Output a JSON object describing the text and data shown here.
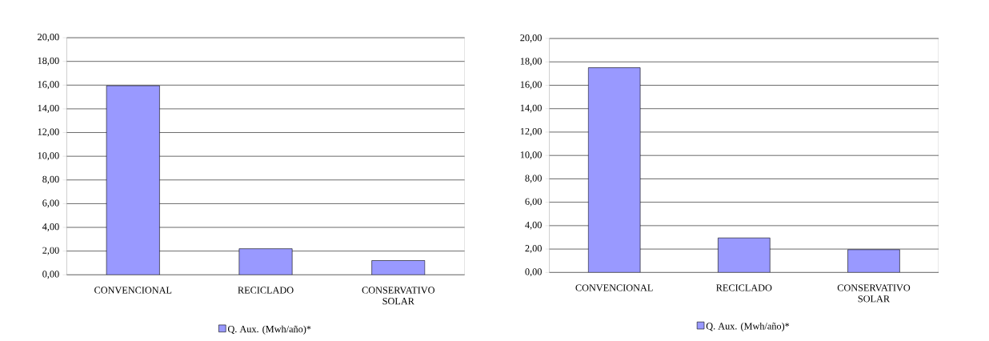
{
  "chart_data": [
    {
      "type": "bar",
      "categories": [
        "CONVENCIONAL",
        "RECICLADO",
        "CONSERVATIVO SOLAR"
      ],
      "series": [
        {
          "name": "Q. Aux.  (Mwh/año)*",
          "color": "#9999ff",
          "values": [
            15.95,
            2.2,
            1.2
          ]
        }
      ],
      "ylim": [
        0,
        20
      ],
      "yticks": [
        {
          "value": 0,
          "label": "0,00"
        },
        {
          "value": 2,
          "label": "2,00"
        },
        {
          "value": 4,
          "label": "4,00"
        },
        {
          "value": 6,
          "label": "6,00"
        },
        {
          "value": 8,
          "label": "8,00"
        },
        {
          "value": 10,
          "label": "10,00"
        },
        {
          "value": 12,
          "label": "12,00"
        },
        {
          "value": 14,
          "label": "14,00"
        },
        {
          "value": 16,
          "label": "16,00"
        },
        {
          "value": 18,
          "label": "18,00"
        },
        {
          "value": 20,
          "label": "20,00"
        }
      ],
      "grid": "y",
      "legend": "bottom"
    },
    {
      "type": "bar",
      "categories": [
        "CONVENCIONAL",
        "RECICLADO",
        "CONSERVATIVO SOLAR"
      ],
      "series": [
        {
          "name": "Q. Aux.  (Mwh/año)*",
          "color": "#9999ff",
          "values": [
            17.5,
            2.95,
            1.95
          ]
        }
      ],
      "ylim": [
        0,
        20
      ],
      "yticks": [
        {
          "value": 0,
          "label": "0,00"
        },
        {
          "value": 2,
          "label": "2,00"
        },
        {
          "value": 4,
          "label": "4,00"
        },
        {
          "value": 6,
          "label": "6,00"
        },
        {
          "value": 8,
          "label": "8,00"
        },
        {
          "value": 10,
          "label": "10,00"
        },
        {
          "value": 12,
          "label": "12,00"
        },
        {
          "value": 14,
          "label": "14,00"
        },
        {
          "value": 16,
          "label": "16,00"
        },
        {
          "value": 18,
          "label": "18,00"
        },
        {
          "value": 20,
          "label": "20,00"
        }
      ],
      "grid": "y",
      "legend": "bottom"
    }
  ]
}
